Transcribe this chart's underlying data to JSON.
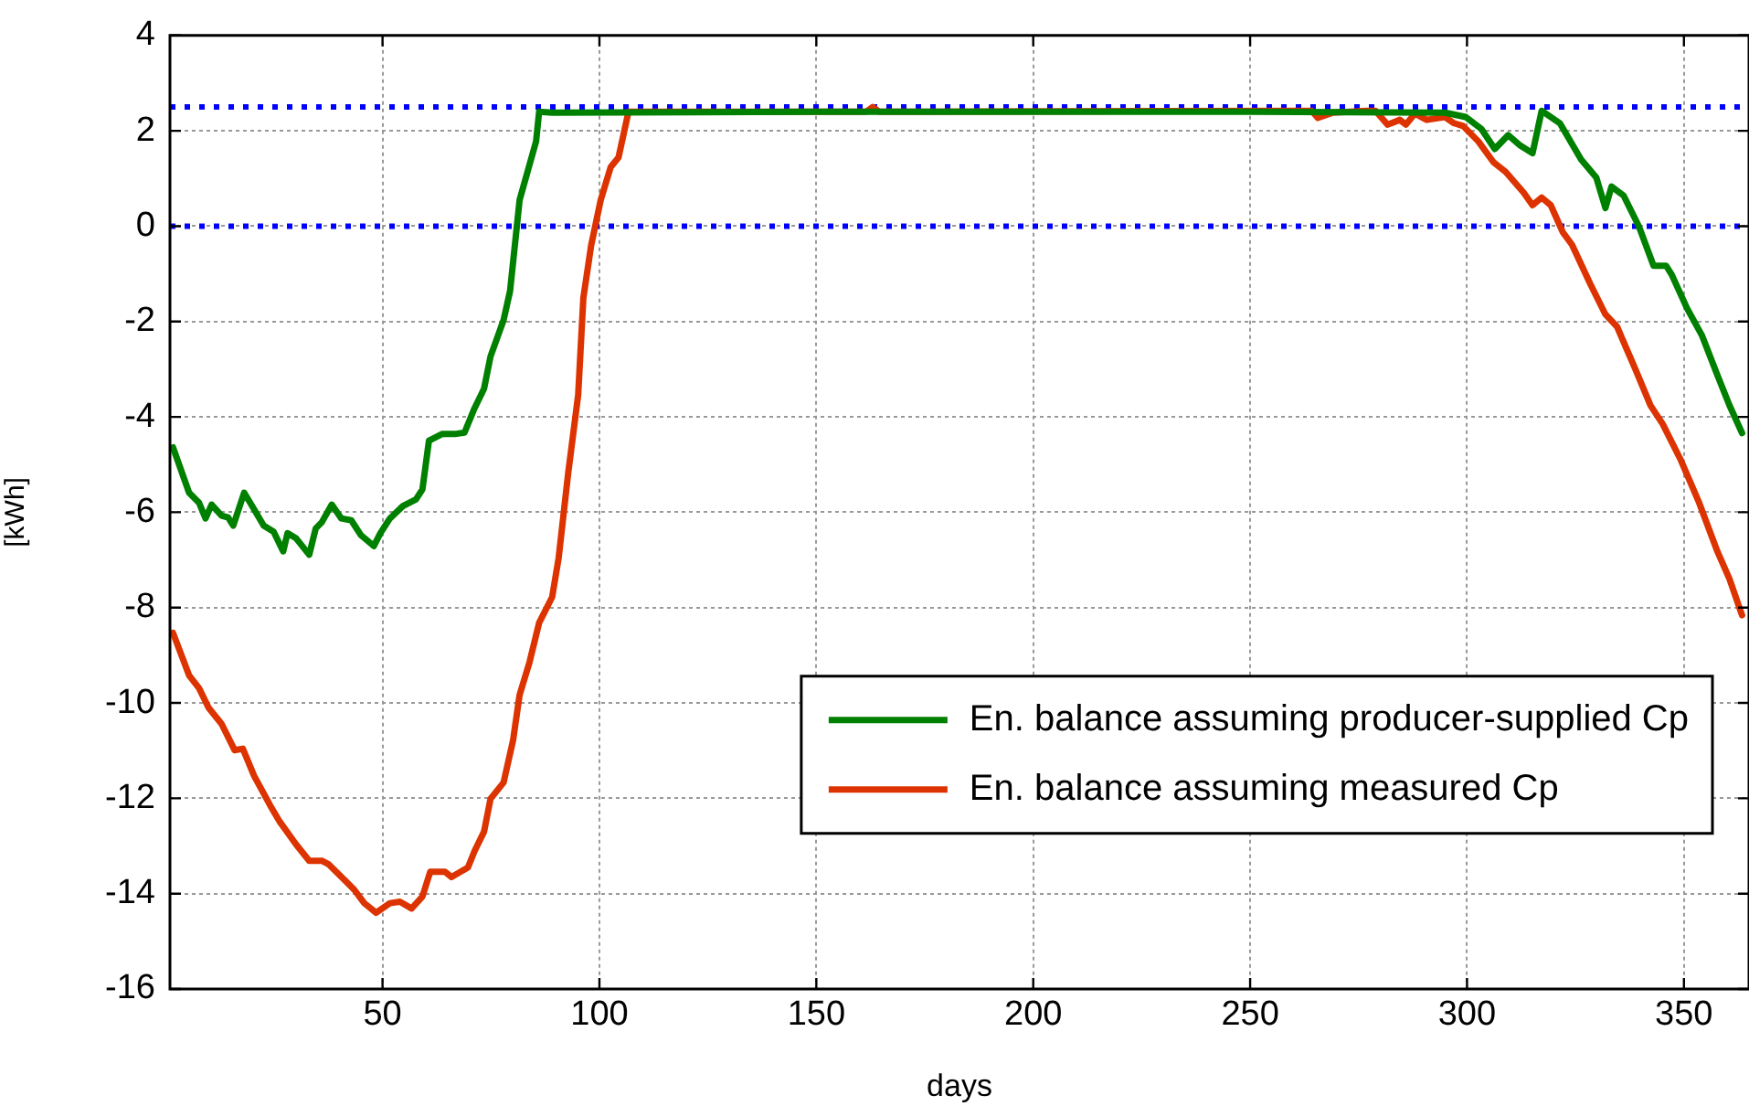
{
  "chart_data": {
    "type": "line",
    "xlabel": "days",
    "ylabel": "[kWh]",
    "xlim": [
      1,
      365
    ],
    "xticks": [
      50,
      100,
      150,
      200,
      250,
      300,
      350
    ],
    "ylim": [
      -16,
      4
    ],
    "yticks": [
      -16,
      -14,
      -12,
      -10,
      -8,
      -6,
      -4,
      -2,
      0,
      2,
      4
    ],
    "grid": true,
    "legend": "bottom right",
    "marker": "none",
    "line_style": "solid",
    "ref_lines": [
      {
        "axis": "y",
        "value": 2.5,
        "color": "#0000ff",
        "line_style": "dotted"
      },
      {
        "axis": "y",
        "value": 0,
        "color": "#0000ff",
        "line_style": "dotted"
      }
    ],
    "series": [
      {
        "name": "En. balance assuming producer-supplied Cp",
        "color": "#008000",
        "x": [
          1.7,
          5.4,
          7.7,
          9.2,
          10.6,
          12.9,
          14.4,
          15.6,
          18.1,
          20.4,
          22.6,
          24.9,
          27.1,
          28.1,
          30.1,
          33.1,
          34.6,
          36,
          38.3,
          40.5,
          42.8,
          45,
          48,
          49.5,
          51.7,
          54.7,
          57.7,
          59.2,
          60.7,
          63.7,
          66.7,
          68.9,
          71.2,
          73.4,
          74.9,
          77.9,
          79.4,
          81.6,
          85.4,
          86.1,
          89.1,
          150,
          200,
          250,
          294.9,
          299.7,
          303.3,
          306.4,
          309.5,
          312.3,
          315.1,
          317.2,
          321.4,
          326.3,
          329.8,
          331.9,
          333.3,
          336.1,
          339.6,
          343,
          345.9,
          347.2,
          350.7,
          354.2,
          357.7,
          360.5,
          363.4
        ],
        "values": [
          -4.64,
          -5.59,
          -5.8,
          -6.13,
          -5.84,
          -6.07,
          -6.11,
          -6.28,
          -5.59,
          -5.94,
          -6.28,
          -6.41,
          -6.82,
          -6.44,
          -6.55,
          -6.89,
          -6.34,
          -6.21,
          -5.84,
          -6.13,
          -6.17,
          -6.48,
          -6.71,
          -6.44,
          -6.13,
          -5.87,
          -5.73,
          -5.52,
          -4.5,
          -4.36,
          -4.36,
          -4.33,
          -3.82,
          -3.41,
          -2.73,
          -1.97,
          -1.36,
          0.55,
          1.78,
          2.4,
          2.38,
          2.4,
          2.4,
          2.4,
          2.38,
          2.29,
          2.04,
          1.62,
          1.91,
          1.69,
          1.53,
          2.42,
          2.16,
          1.4,
          1.02,
          0.38,
          0.83,
          0.64,
          0,
          -0.83,
          -0.83,
          -1.02,
          -1.72,
          -2.3,
          -3.12,
          -3.76,
          -4.34
        ]
      },
      {
        "name": "En. balance assuming measured Cp",
        "color": "#dd3300",
        "x": [
          1.7,
          5.4,
          7.7,
          9.9,
          12.9,
          15.9,
          17.8,
          20.4,
          24.1,
          26.3,
          30.1,
          33.1,
          36,
          37.5,
          41.3,
          43.5,
          45.8,
          48.5,
          51.7,
          54,
          56.7,
          59.2,
          61,
          64.4,
          65.9,
          69.7,
          71.2,
          73.4,
          74.9,
          77.9,
          80.1,
          81.6,
          83.9,
          86.1,
          89.1,
          90.6,
          92.8,
          95.1,
          96.3,
          98.1,
          100.3,
          102.6,
          104.4,
          106.7,
          161.5,
          163,
          164.5,
          264.2,
          265.6,
          269.1,
          276.8,
          278.9,
          281.7,
          284.5,
          285.9,
          288,
          290.7,
          294.9,
          297,
          299.1,
          302.6,
          306.1,
          308.9,
          313.1,
          315.1,
          317.2,
          319.3,
          322.1,
          324.2,
          328.4,
          331.9,
          334.6,
          338.8,
          342.3,
          345.1,
          349.3,
          353.5,
          357.7,
          360.5,
          363.4
        ],
        "values": [
          -8.53,
          -9.42,
          -9.69,
          -10.1,
          -10.44,
          -10.99,
          -10.96,
          -11.53,
          -12.15,
          -12.49,
          -12.97,
          -13.31,
          -13.31,
          -13.38,
          -13.72,
          -13.92,
          -14.2,
          -14.4,
          -14.2,
          -14.17,
          -14.31,
          -14.06,
          -13.54,
          -13.54,
          -13.65,
          -13.45,
          -13.11,
          -12.7,
          -12.01,
          -11.67,
          -10.78,
          -9.83,
          -9.14,
          -8.32,
          -7.78,
          -6.96,
          -5.18,
          -3.54,
          -1.5,
          -0.4,
          0.55,
          1.24,
          1.44,
          2.4,
          2.4,
          2.5,
          2.4,
          2.42,
          2.27,
          2.38,
          2.42,
          2.42,
          2.13,
          2.23,
          2.13,
          2.36,
          2.23,
          2.29,
          2.16,
          2.1,
          1.78,
          1.34,
          1.14,
          0.7,
          0.44,
          0.6,
          0.44,
          -0.13,
          -0.39,
          -1.21,
          -1.85,
          -2.11,
          -3,
          -3.76,
          -4.15,
          -4.91,
          -5.8,
          -6.82,
          -7.4,
          -8.16
        ]
      }
    ]
  }
}
